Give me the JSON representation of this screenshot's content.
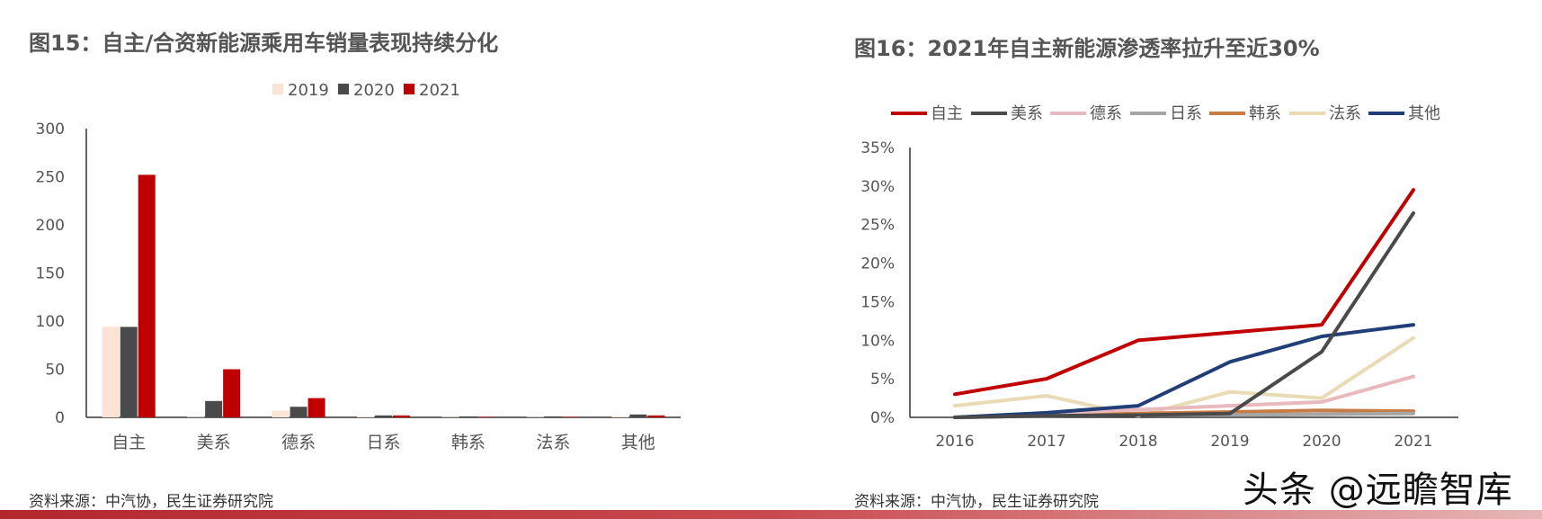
{
  "left_figure": {
    "title": "图15：自主/合资新能源乘用车销量表现持续分化",
    "source": "资料来源：中汽协，民生证券研究院"
  },
  "right_figure": {
    "title": "图16：2021年自主新能源渗透率拉升至近30%",
    "source": "资料来源：中汽协，民生证券研究院"
  },
  "watermark": "头条 @远瞻智库",
  "colors": {
    "bar_2019": "#fbe3d6",
    "bar_2020": "#4a4a4a",
    "bar_2021": "#c00000",
    "line_自主": "#c00000",
    "line_美系": "#4a4a4a",
    "line_德系": "#e8b9bd",
    "line_日系": "#a6a6a6",
    "line_韩系": "#c87c45",
    "line_法系": "#e9dcb5",
    "line_其他": "#203e78",
    "bottom_bar": "#b3272d"
  },
  "chart_data": [
    {
      "type": "bar",
      "title": "图15：自主/合资新能源乘用车销量表现持续分化",
      "categories": [
        "自主",
        "美系",
        "德系",
        "日系",
        "韩系",
        "法系",
        "其他"
      ],
      "series": [
        {
          "name": "2019",
          "values": [
            94,
            0.5,
            7,
            1,
            0.5,
            0.5,
            1
          ]
        },
        {
          "name": "2020",
          "values": [
            94,
            17,
            11,
            2,
            1,
            1,
            3
          ]
        },
        {
          "name": "2021",
          "values": [
            252,
            50,
            20,
            2,
            0.5,
            0.5,
            2
          ]
        }
      ],
      "yticks": [
        0,
        50,
        100,
        150,
        200,
        250,
        300
      ],
      "ylim": [
        0,
        300
      ],
      "legend_position": "top",
      "grid": false,
      "xlabel": "",
      "ylabel": ""
    },
    {
      "type": "line",
      "title": "图16：2021年自主新能源渗透率拉升至近30%",
      "x": [
        "2016",
        "2017",
        "2018",
        "2019",
        "2020",
        "2021"
      ],
      "series": [
        {
          "name": "自主",
          "values": [
            3.0,
            5.0,
            10.0,
            11.0,
            12.0,
            29.5
          ]
        },
        {
          "name": "美系",
          "values": [
            0.0,
            0.2,
            0.3,
            0.5,
            8.5,
            26.5
          ]
        },
        {
          "name": "德系",
          "values": [
            0.0,
            0.5,
            1.0,
            1.5,
            2.0,
            5.3
          ]
        },
        {
          "name": "日系",
          "values": [
            0.0,
            0.2,
            0.3,
            0.3,
            0.4,
            0.5
          ]
        },
        {
          "name": "韩系",
          "values": [
            0.0,
            0.2,
            0.5,
            0.7,
            0.9,
            0.8
          ]
        },
        {
          "name": "法系",
          "values": [
            1.5,
            2.8,
            0.2,
            3.3,
            2.5,
            10.3
          ]
        },
        {
          "name": "其他",
          "values": [
            0.0,
            0.6,
            1.5,
            7.2,
            10.5,
            12.0
          ]
        }
      ],
      "yticks": [
        "0%",
        "5%",
        "10%",
        "15%",
        "20%",
        "25%",
        "30%",
        "35%"
      ],
      "ylim": [
        0,
        35
      ],
      "legend_position": "top",
      "grid": false,
      "xlabel": "",
      "ylabel": ""
    }
  ]
}
